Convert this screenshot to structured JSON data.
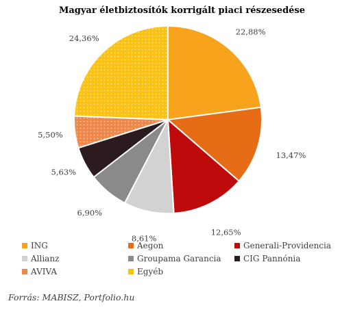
{
  "chart_data": {
    "type": "pie",
    "title": "Magyar életbiztosítók korrigált piaci részesedése",
    "series": [
      {
        "name": "ING",
        "value": 22.88,
        "label": "22,88%",
        "color": "#F7A31C",
        "pattern": "solid"
      },
      {
        "name": "Aegon",
        "value": 13.47,
        "label": "13,47%",
        "color": "#E66D15",
        "pattern": "solid"
      },
      {
        "name": "Generali-Providencia",
        "value": 12.65,
        "label": "12,65%",
        "color": "#BE0A0A",
        "pattern": "solid"
      },
      {
        "name": "Allianz",
        "value": 8.61,
        "label": "8,61%",
        "color": "#D2D2D2",
        "pattern": "solid"
      },
      {
        "name": "Groupama Garancia",
        "value": 6.9,
        "label": "6,90%",
        "color": "#8A8A8A",
        "pattern": "solid"
      },
      {
        "name": "CIG Pannónia",
        "value": 5.63,
        "label": "5,63%",
        "color": "#2B1A1E",
        "pattern": "solid"
      },
      {
        "name": "AVIVA",
        "value": 5.5,
        "label": "5,50%",
        "color": "#F0874A",
        "pattern": "dots"
      },
      {
        "name": "Egyéb",
        "value": 24.36,
        "label": "24,36%",
        "color": "#F9C214",
        "pattern": "dots"
      }
    ],
    "legend_position": "bottom",
    "start_angle": "12 o'clock, clockwise"
  },
  "source": "Forrás: MABISZ, Portfolio.hu"
}
